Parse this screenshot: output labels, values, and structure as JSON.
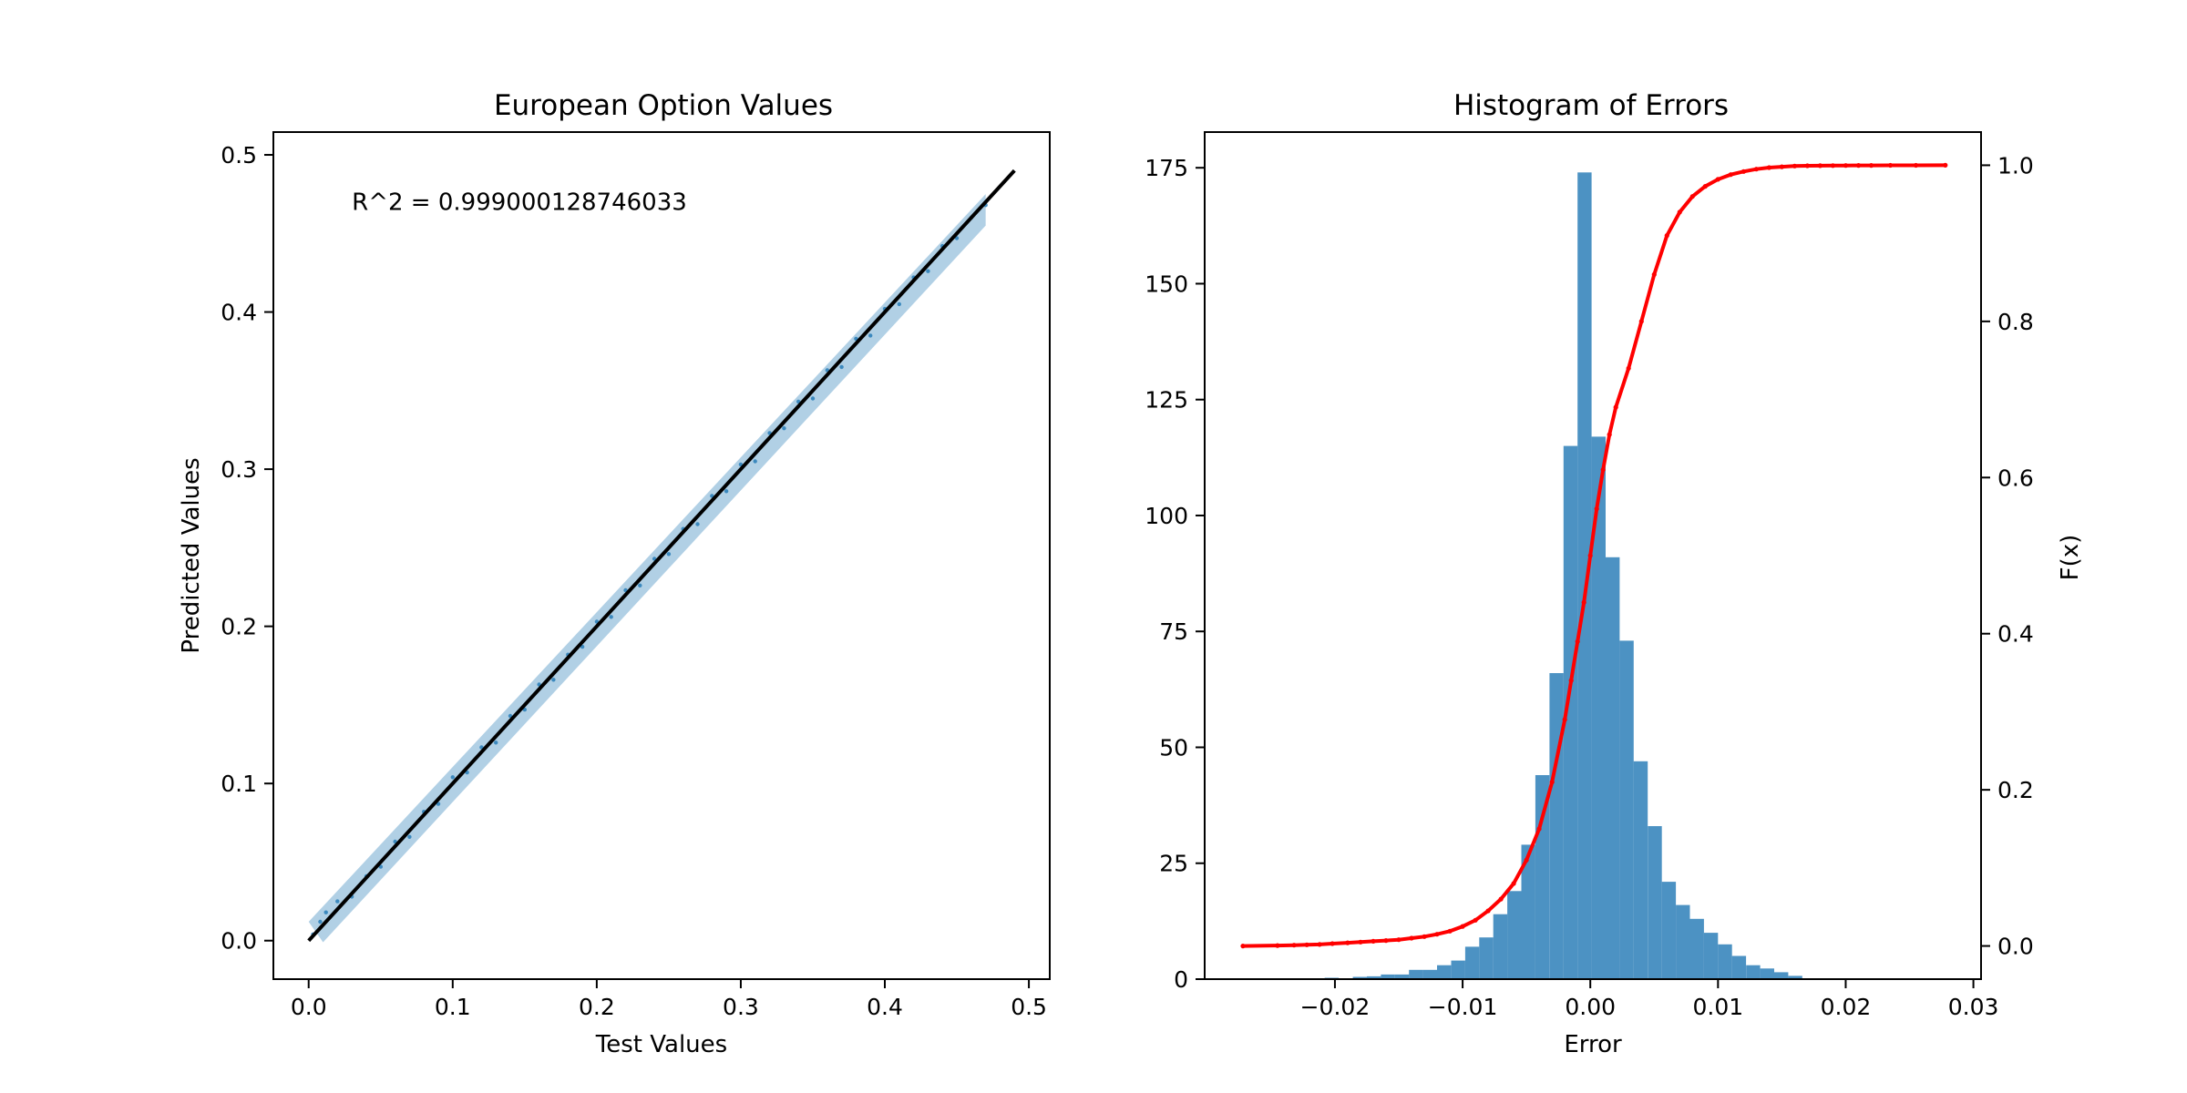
{
  "chart_data": [
    {
      "type": "scatter",
      "title": "European Option Values",
      "xlabel": "Test Values",
      "ylabel": "Predicted Values",
      "xlim": [
        -0.0245,
        0.5145
      ],
      "ylim": [
        -0.0245,
        0.5145
      ],
      "xticks": [
        {
          "value": 0.0,
          "label": "0.0"
        },
        {
          "value": 0.1,
          "label": "0.1"
        },
        {
          "value": 0.2,
          "label": "0.2"
        },
        {
          "value": 0.3,
          "label": "0.3"
        },
        {
          "value": 0.4,
          "label": "0.4"
        },
        {
          "value": 0.5,
          "label": "0.5"
        }
      ],
      "yticks": [
        {
          "value": 0.0,
          "label": "0.0"
        },
        {
          "value": 0.1,
          "label": "0.1"
        },
        {
          "value": 0.2,
          "label": "0.2"
        },
        {
          "value": 0.3,
          "label": "0.3"
        },
        {
          "value": 0.4,
          "label": "0.4"
        },
        {
          "value": 0.5,
          "label": "0.5"
        }
      ],
      "annotation": {
        "text": "R^2 = 0.999000128746033",
        "x": 0.03,
        "y": 0.465
      },
      "scatter_color": "#1f77b4",
      "fit_line": {
        "x": [
          0.0,
          0.49
        ],
        "y": [
          0.0,
          0.49
        ],
        "color": "#000000"
      },
      "scatter_points": [
        [
          0.003,
          0.004
        ],
        [
          0.008,
          0.012
        ],
        [
          0.012,
          0.018
        ],
        [
          0.02,
          0.025
        ],
        [
          0.03,
          0.028
        ],
        [
          0.04,
          0.041
        ],
        [
          0.05,
          0.047
        ],
        [
          0.06,
          0.063
        ],
        [
          0.07,
          0.066
        ],
        [
          0.08,
          0.082
        ],
        [
          0.09,
          0.087
        ],
        [
          0.1,
          0.104
        ],
        [
          0.11,
          0.107
        ],
        [
          0.12,
          0.123
        ],
        [
          0.13,
          0.126
        ],
        [
          0.14,
          0.143
        ],
        [
          0.15,
          0.147
        ],
        [
          0.16,
          0.163
        ],
        [
          0.17,
          0.166
        ],
        [
          0.18,
          0.182
        ],
        [
          0.19,
          0.187
        ],
        [
          0.2,
          0.203
        ],
        [
          0.21,
          0.206
        ],
        [
          0.22,
          0.223
        ],
        [
          0.23,
          0.226
        ],
        [
          0.24,
          0.243
        ],
        [
          0.25,
          0.246
        ],
        [
          0.26,
          0.262
        ],
        [
          0.27,
          0.265
        ],
        [
          0.28,
          0.283
        ],
        [
          0.29,
          0.286
        ],
        [
          0.3,
          0.303
        ],
        [
          0.31,
          0.305
        ],
        [
          0.32,
          0.323
        ],
        [
          0.33,
          0.326
        ],
        [
          0.34,
          0.343
        ],
        [
          0.35,
          0.345
        ],
        [
          0.36,
          0.363
        ],
        [
          0.37,
          0.365
        ],
        [
          0.38,
          0.383
        ],
        [
          0.39,
          0.385
        ],
        [
          0.4,
          0.402
        ],
        [
          0.41,
          0.405
        ],
        [
          0.42,
          0.422
        ],
        [
          0.43,
          0.426
        ],
        [
          0.44,
          0.442
        ],
        [
          0.45,
          0.447
        ],
        [
          0.46,
          0.46
        ],
        [
          0.47,
          0.468
        ]
      ]
    },
    {
      "type": "bar",
      "title": "Histogram of Errors",
      "xlabel": "Error",
      "ylabel": "",
      "ylabel_right": "F(x)",
      "xlim": [
        -0.0302,
        0.0306
      ],
      "ylim": [
        0,
        182.7
      ],
      "ylim_right": [
        -0.0425,
        1.0425
      ],
      "xticks": [
        {
          "value": -0.02,
          "label": "−0.02"
        },
        {
          "value": -0.01,
          "label": "−0.01"
        },
        {
          "value": 0.0,
          "label": "0.00"
        },
        {
          "value": 0.01,
          "label": "0.01"
        },
        {
          "value": 0.02,
          "label": "0.02"
        },
        {
          "value": 0.03,
          "label": "0.03"
        }
      ],
      "yticks": [
        {
          "value": 0,
          "label": "0"
        },
        {
          "value": 25,
          "label": "25"
        },
        {
          "value": 50,
          "label": "50"
        },
        {
          "value": 75,
          "label": "75"
        },
        {
          "value": 100,
          "label": "100"
        },
        {
          "value": 125,
          "label": "125"
        },
        {
          "value": 150,
          "label": "150"
        },
        {
          "value": 175,
          "label": "175"
        }
      ],
      "yticks_right": [
        {
          "value": 0.0,
          "label": "0.0"
        },
        {
          "value": 0.2,
          "label": "0.2"
        },
        {
          "value": 0.4,
          "label": "0.4"
        },
        {
          "value": 0.6,
          "label": "0.6"
        },
        {
          "value": 0.8,
          "label": "0.8"
        },
        {
          "value": 1.0,
          "label": "1.0"
        }
      ],
      "bar_color": "#1f77b4",
      "bins": [
        {
          "x0": -0.0208,
          "x1": -0.0197,
          "count": 0.3
        },
        {
          "x0": -0.0197,
          "x1": -0.0186,
          "count": 0.2
        },
        {
          "x0": -0.0186,
          "x1": -0.0175,
          "count": 0.5
        },
        {
          "x0": -0.0175,
          "x1": -0.0164,
          "count": 0.6
        },
        {
          "x0": -0.0164,
          "x1": -0.0153,
          "count": 1.0
        },
        {
          "x0": -0.0153,
          "x1": -0.0142,
          "count": 1.0
        },
        {
          "x0": -0.0142,
          "x1": -0.0131,
          "count": 2.0
        },
        {
          "x0": -0.0131,
          "x1": -0.012,
          "count": 2.0
        },
        {
          "x0": -0.012,
          "x1": -0.0109,
          "count": 3.0
        },
        {
          "x0": -0.0109,
          "x1": -0.0098,
          "count": 4.0
        },
        {
          "x0": -0.0098,
          "x1": -0.0087,
          "count": 7.0
        },
        {
          "x0": -0.0087,
          "x1": -0.0076,
          "count": 9.0
        },
        {
          "x0": -0.0076,
          "x1": -0.0065,
          "count": 14.0
        },
        {
          "x0": -0.0065,
          "x1": -0.0054,
          "count": 19.0
        },
        {
          "x0": -0.0054,
          "x1": -0.0043,
          "count": 29.0
        },
        {
          "x0": -0.0043,
          "x1": -0.0032,
          "count": 44.0
        },
        {
          "x0": -0.0032,
          "x1": -0.0021,
          "count": 66.0
        },
        {
          "x0": -0.0021,
          "x1": -0.001,
          "count": 115.0
        },
        {
          "x0": -0.001,
          "x1": 0.0001,
          "count": 174.0
        },
        {
          "x0": 0.0001,
          "x1": 0.0012,
          "count": 117.0
        },
        {
          "x0": 0.0012,
          "x1": 0.0023,
          "count": 91.0
        },
        {
          "x0": 0.0023,
          "x1": 0.0034,
          "count": 73.0
        },
        {
          "x0": 0.0034,
          "x1": 0.0045,
          "count": 47.0
        },
        {
          "x0": 0.0045,
          "x1": 0.0056,
          "count": 33.0
        },
        {
          "x0": 0.0056,
          "x1": 0.0067,
          "count": 21.0
        },
        {
          "x0": 0.0067,
          "x1": 0.0078,
          "count": 16.0
        },
        {
          "x0": 0.0078,
          "x1": 0.0089,
          "count": 13.0
        },
        {
          "x0": 0.0089,
          "x1": 0.01,
          "count": 10.0
        },
        {
          "x0": 0.01,
          "x1": 0.0111,
          "count": 7.5
        },
        {
          "x0": 0.0111,
          "x1": 0.0122,
          "count": 5.0
        },
        {
          "x0": 0.0122,
          "x1": 0.0133,
          "count": 3.0
        },
        {
          "x0": 0.0133,
          "x1": 0.0144,
          "count": 2.3
        },
        {
          "x0": 0.0144,
          "x1": 0.0155,
          "count": 1.5
        },
        {
          "x0": 0.0155,
          "x1": 0.0166,
          "count": 0.7
        }
      ],
      "cdf_series": {
        "color": "#ff0000",
        "points": [
          [
            -0.0272,
            0.0
          ],
          [
            -0.0245,
            0.0005
          ],
          [
            -0.0232,
            0.001
          ],
          [
            -0.0222,
            0.0015
          ],
          [
            -0.0212,
            0.002
          ],
          [
            -0.0202,
            0.003
          ],
          [
            -0.019,
            0.004
          ],
          [
            -0.018,
            0.005
          ],
          [
            -0.017,
            0.006
          ],
          [
            -0.016,
            0.007
          ],
          [
            -0.015,
            0.008
          ],
          [
            -0.014,
            0.01
          ],
          [
            -0.013,
            0.012
          ],
          [
            -0.012,
            0.015
          ],
          [
            -0.011,
            0.019
          ],
          [
            -0.01,
            0.025
          ],
          [
            -0.009,
            0.033
          ],
          [
            -0.008,
            0.045
          ],
          [
            -0.007,
            0.06
          ],
          [
            -0.006,
            0.08
          ],
          [
            -0.005,
            0.11
          ],
          [
            -0.004,
            0.15
          ],
          [
            -0.003,
            0.21
          ],
          [
            -0.002,
            0.29
          ],
          [
            -0.0015,
            0.34
          ],
          [
            -0.001,
            0.39
          ],
          [
            -0.0005,
            0.44
          ],
          [
            0.0,
            0.5
          ],
          [
            0.0005,
            0.56
          ],
          [
            0.001,
            0.61
          ],
          [
            0.0015,
            0.655
          ],
          [
            0.002,
            0.69
          ],
          [
            0.003,
            0.74
          ],
          [
            0.004,
            0.8
          ],
          [
            0.005,
            0.86
          ],
          [
            0.006,
            0.91
          ],
          [
            0.007,
            0.94
          ],
          [
            0.008,
            0.96
          ],
          [
            0.009,
            0.973
          ],
          [
            0.01,
            0.982
          ],
          [
            0.011,
            0.988
          ],
          [
            0.012,
            0.992
          ],
          [
            0.013,
            0.995
          ],
          [
            0.014,
            0.997
          ],
          [
            0.015,
            0.998
          ],
          [
            0.016,
            0.999
          ],
          [
            0.017,
            0.9993
          ],
          [
            0.018,
            0.9995
          ],
          [
            0.019,
            0.9996
          ],
          [
            0.02,
            0.9997
          ],
          [
            0.021,
            0.9998
          ],
          [
            0.022,
            0.9998
          ],
          [
            0.0235,
            0.9999
          ],
          [
            0.0255,
            0.9999
          ],
          [
            0.0278,
            1.0
          ]
        ]
      }
    }
  ]
}
